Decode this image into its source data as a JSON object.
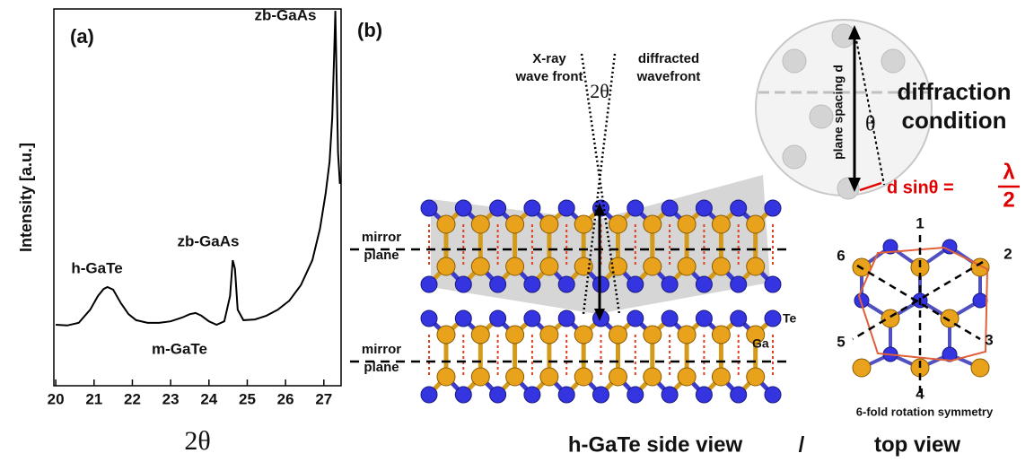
{
  "chart_data": {
    "type": "line",
    "panel_label": "(a)",
    "ylabel": "Intensity [a.u.]",
    "xlabel": "2θ",
    "x": [
      20,
      20.3,
      20.6,
      20.9,
      21.1,
      21.25,
      21.35,
      21.5,
      21.7,
      21.9,
      22.1,
      22.4,
      22.7,
      23,
      23.3,
      23.5,
      23.65,
      23.8,
      24,
      24.2,
      24.4,
      24.55,
      24.62,
      24.68,
      24.75,
      24.9,
      25.2,
      25.5,
      25.8,
      26.1,
      26.4,
      26.7,
      26.9,
      27.05,
      27.15,
      27.22,
      27.27,
      27.3,
      27.33,
      27.37,
      27.42
    ],
    "series": [
      {
        "color": "#000000",
        "values": [
          16.2,
          16,
          16.7,
          20.2,
          23.8,
          25.7,
          26.2,
          25.5,
          21.9,
          19,
          17.4,
          16.7,
          16.7,
          17.1,
          18.1,
          19,
          19.3,
          18.6,
          17.1,
          16.2,
          17.1,
          23.8,
          33.3,
          31,
          20.2,
          17.4,
          17.6,
          18.6,
          20.2,
          22.6,
          26.7,
          33.3,
          41.7,
          51.2,
          59.5,
          71.4,
          88.1,
          99.5,
          83.3,
          61.9,
          53.6
        ]
      }
    ],
    "xlim": [
      19.95,
      27.45
    ],
    "xticks": [
      20,
      21,
      22,
      23,
      24,
      25,
      26,
      27
    ],
    "ylim": [
      0,
      100
    ],
    "annotations": [
      "h-GaTe",
      "m-GaTe",
      "zb-GaAs",
      "zb-GaAs"
    ]
  },
  "diagram": {
    "panel_label": "(b)",
    "xray_label": [
      "X-ray",
      "wave front"
    ],
    "diffracted_label": [
      "diffracted",
      "wavefront"
    ],
    "angle_label": "2θ",
    "mirror_labels": [
      [
        "mirror",
        "plane"
      ],
      [
        "mirror",
        "plane"
      ]
    ],
    "atom_labels": [
      "Te",
      "Ga"
    ],
    "spacing_label": "plane spacing d",
    "theta_label": "θ",
    "condition_label": [
      "diffraction",
      "condition"
    ],
    "bragg": {
      "lhs": "d sinθ =",
      "numerator": "λ",
      "denominator": "2"
    },
    "axis_numbers": [
      "1",
      "2",
      "3",
      "4",
      "5",
      "6"
    ],
    "symmetry_label": "6-fold rotation symmetry",
    "captions": [
      "h-GaTe side view",
      "/",
      "top view"
    ]
  }
}
